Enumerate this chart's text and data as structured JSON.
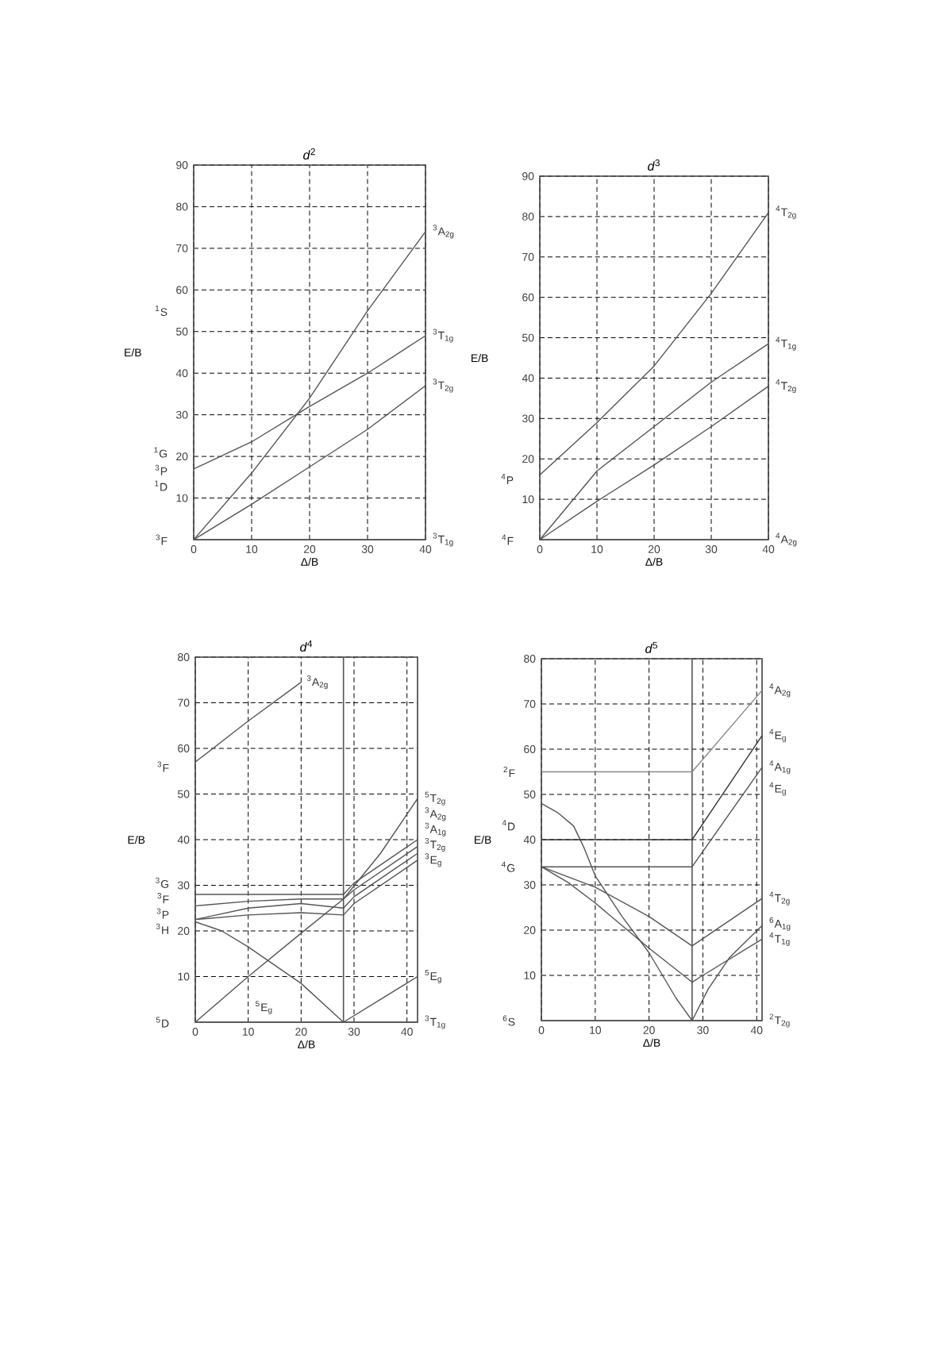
{
  "chart_data": [
    {
      "type": "line",
      "title": "*d*$^{2}$",
      "xlabel": "Δ/B",
      "ylabel": "E/B",
      "xlim": [
        0,
        40
      ],
      "ylim": [
        0,
        90
      ],
      "xticks": [
        0,
        10,
        20,
        30,
        40
      ],
      "yticks": [
        10,
        20,
        30,
        40,
        50,
        60,
        70,
        80,
        90
      ],
      "grid": true,
      "series": [
        {
          "name": "$^{3}$T$_{1g}$",
          "color": "#555555",
          "x": [
            0,
            40
          ],
          "values": [
            0,
            0
          ]
        },
        {
          "name": "$^{3}$T$_{2g}$",
          "color": "#555555",
          "x": [
            0,
            10,
            20,
            30,
            40
          ],
          "values": [
            0,
            8.5,
            17.5,
            26.5,
            37
          ]
        },
        {
          "name": "$^{3}$T$_{1g}$",
          "color": "#555555",
          "x": [
            0,
            10,
            20,
            30,
            40
          ],
          "values": [
            17,
            23.5,
            32,
            40,
            49
          ]
        },
        {
          "name": "$^{3}$A$_{2g}$",
          "color": "#555555",
          "x": [
            0,
            10,
            20,
            30,
            40
          ],
          "values": [
            0,
            16,
            34,
            55,
            74
          ]
        }
      ],
      "annotations": [
        "$^{3}$F",
        "$^{1}$D",
        "$^{3}$P",
        "$^{1}$G",
        "$^{1}$S"
      ]
    },
    {
      "type": "line",
      "title": "*d*$^{3}$",
      "xlabel": "Δ/B",
      "ylabel": "E/B",
      "xlim": [
        0,
        40
      ],
      "ylim": [
        0,
        90
      ],
      "xticks": [
        0,
        10,
        20,
        30,
        40
      ],
      "yticks": [
        10,
        20,
        30,
        40,
        50,
        60,
        70,
        80,
        90
      ],
      "grid": true,
      "series": [
        {
          "name": "$^{4}$A$_{2g}$",
          "color": "#555555",
          "x": [
            0,
            40
          ],
          "values": [
            0,
            0
          ]
        },
        {
          "name": "$^{4}$T$_{2g}$",
          "color": "#555555",
          "x": [
            0,
            10,
            20,
            30,
            40
          ],
          "values": [
            0,
            9.5,
            18.5,
            28,
            38
          ]
        },
        {
          "name": "$^{4}$T$_{1g}$",
          "color": "#555555",
          "x": [
            0,
            10,
            20,
            30,
            40
          ],
          "values": [
            0,
            17,
            28,
            39,
            48.5
          ]
        },
        {
          "name": "$^{4}$T$_{2g}$",
          "color": "#555555",
          "x": [
            0,
            10,
            20,
            30,
            40
          ],
          "values": [
            16,
            29,
            43,
            61,
            81
          ]
        }
      ],
      "annotations": [
        "$^{4}$F",
        "$^{4}$P"
      ]
    },
    {
      "type": "line",
      "title": "*d*$^{4}$",
      "xlabel": "Δ/B",
      "ylabel": "E/B",
      "xlim": [
        0,
        42
      ],
      "ylim": [
        0,
        80
      ],
      "xticks": [
        0,
        10,
        20,
        30,
        40
      ],
      "yticks": [
        10,
        20,
        30,
        40,
        50,
        60,
        70,
        80
      ],
      "grid": true,
      "series": [
        {
          "name": "$^{3}$T$_{1g}$",
          "color": "#555555",
          "x": [
            0,
            5,
            10,
            15,
            20,
            28,
            42
          ],
          "values": [
            22,
            20,
            16.5,
            12.5,
            8.5,
            0,
            0
          ]
        },
        {
          "name": "$^{5}$E$_{g}$",
          "color": "#555555",
          "x": [
            0,
            28,
            35,
            42
          ],
          "values": [
            0,
            0,
            5,
            10
          ]
        },
        {
          "name": "$^{3}$E$_{g}$",
          "color": "#555555",
          "x": [
            0,
            10,
            20,
            28,
            30,
            42
          ],
          "values": [
            22.5,
            23.5,
            24,
            23.5,
            26,
            35.5
          ]
        },
        {
          "name": "$^{3}$T$_{2g}$",
          "color": "#555555",
          "x": [
            0,
            10,
            20,
            28,
            30,
            42
          ],
          "values": [
            22.5,
            25,
            26,
            25,
            27.5,
            37
          ]
        },
        {
          "name": "$^{3}$A$_{1g}$",
          "color": "#555555",
          "x": [
            0,
            10,
            20,
            28,
            30,
            42
          ],
          "values": [
            25.5,
            26.5,
            27,
            27,
            29,
            38.5
          ]
        },
        {
          "name": "$^{3}$A$_{2g}$",
          "color": "#555555",
          "x": [
            0,
            10,
            20,
            28,
            30,
            42
          ],
          "values": [
            28,
            28,
            28,
            28,
            30.5,
            40
          ]
        },
        {
          "name": "$^{5}$T$_{2g}$",
          "color": "#555555",
          "x": [
            0,
            10,
            20,
            28,
            35,
            42
          ],
          "values": [
            0,
            10,
            19.5,
            27,
            37,
            49
          ]
        },
        {
          "name": "$^{3}$A$_{2g}$",
          "color": "#555555",
          "x": [
            0,
            10,
            20
          ],
          "values": [
            57,
            66,
            74.5
          ]
        }
      ],
      "ref_lines": [
        {
          "axis": "x",
          "value": 28,
          "color": "#555555"
        }
      ],
      "annotations": [
        "$^{5}$D",
        "$^{3}$H",
        "$^{3}$P",
        "$^{3}$F",
        "$^{3}$G",
        "$^{3}$F",
        "$^{5}$E$_{g}$"
      ]
    },
    {
      "type": "line",
      "title": "*d*$^{5}$",
      "xlabel": "Δ/B",
      "ylabel": "E/B",
      "xlim": [
        0,
        41
      ],
      "ylim": [
        0,
        80
      ],
      "xticks": [
        0,
        10,
        20,
        30,
        40
      ],
      "yticks": [
        10,
        20,
        30,
        40,
        50,
        60,
        70,
        80
      ],
      "grid": true,
      "series": [
        {
          "name": "$^{2}$T$_{2g}$",
          "color": "#555555",
          "x": [
            0,
            41
          ],
          "values": [
            0,
            0
          ]
        },
        {
          "name": "$^{4}$T$_{1g}$",
          "color": "#555555",
          "x": [
            0,
            5,
            10,
            20,
            28,
            30,
            41
          ],
          "values": [
            34,
            30.5,
            26,
            16,
            8.5,
            10,
            18
          ]
        },
        {
          "name": "$^{6}$A$_{1g}$",
          "color": "#555555",
          "x": [
            0,
            3,
            6,
            8,
            10,
            15,
            20,
            25,
            28,
            31,
            35,
            41
          ],
          "values": [
            48,
            46,
            43,
            38,
            32,
            23,
            15,
            5,
            0,
            7,
            14,
            21
          ]
        },
        {
          "name": "$^{4}$T$_{2g}$",
          "color": "#555555",
          "x": [
            0,
            10,
            20,
            28,
            41
          ],
          "values": [
            34,
            29.5,
            23,
            16.5,
            27
          ]
        },
        {
          "name": "$^{4}$A$_{1g}$",
          "color": "#555555",
          "x": [
            0,
            28,
            41
          ],
          "values": [
            34,
            34,
            56
          ]
        },
        {
          "name": "$^{4}$E$_{g}$",
          "color": "#333333",
          "x": [
            0,
            28,
            41
          ],
          "values": [
            40,
            40,
            63
          ]
        },
        {
          "name": "$^{4}$A$_{2g}$",
          "color": "#888888",
          "x": [
            0,
            28,
            41
          ],
          "values": [
            55,
            55,
            73
          ]
        }
      ],
      "ref_lines": [
        {
          "axis": "x",
          "value": 28,
          "color": "#555555"
        }
      ],
      "annotations": [
        "$^{6}$S",
        "$^{4}$G",
        "$^{4}$D",
        "$^{2}$F",
        "$^{4}$E$_{g}$"
      ]
    }
  ]
}
